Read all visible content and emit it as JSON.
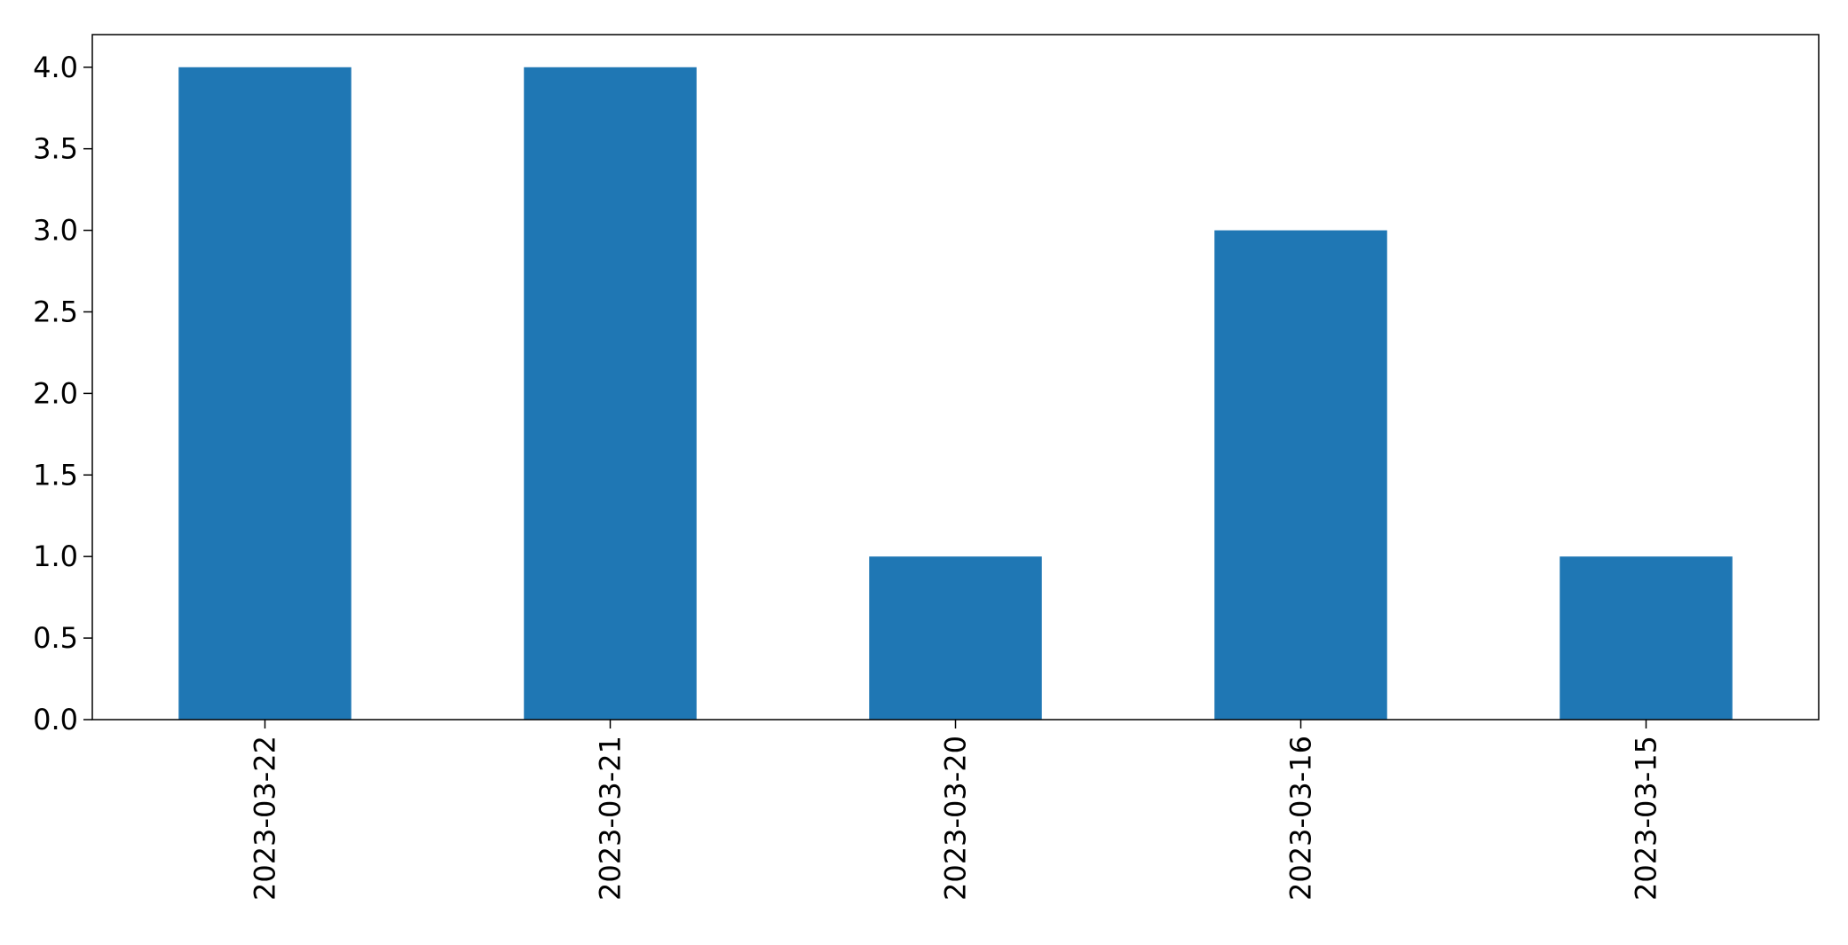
{
  "chart_data": {
    "type": "bar",
    "categories": [
      "2023-03-22",
      "2023-03-21",
      "2023-03-20",
      "2023-03-16",
      "2023-03-15"
    ],
    "values": [
      4,
      4,
      1,
      3,
      1
    ],
    "title": "",
    "xlabel": "",
    "ylabel": "",
    "ylim": [
      0,
      4.2
    ],
    "yticks": [
      0.0,
      0.5,
      1.0,
      1.5,
      2.0,
      2.5,
      3.0,
      3.5,
      4.0
    ],
    "ytick_labels": [
      "0.0",
      "0.5",
      "1.0",
      "1.5",
      "2.0",
      "2.5",
      "3.0",
      "3.5",
      "4.0"
    ],
    "x_tick_rotation": "vertical",
    "grid": false,
    "legend": "none",
    "bar_color": "#1f77b4"
  }
}
